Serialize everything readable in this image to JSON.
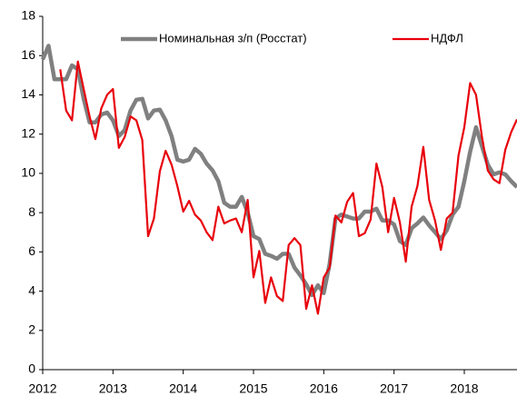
{
  "chart_data": {
    "type": "line",
    "x": [
      2012.0,
      2012.083,
      2012.167,
      2012.25,
      2012.333,
      2012.417,
      2012.5,
      2012.583,
      2012.667,
      2012.75,
      2012.833,
      2012.917,
      2013.0,
      2013.083,
      2013.167,
      2013.25,
      2013.333,
      2013.417,
      2013.5,
      2013.583,
      2013.667,
      2013.75,
      2013.833,
      2013.917,
      2014.0,
      2014.083,
      2014.167,
      2014.25,
      2014.333,
      2014.417,
      2014.5,
      2014.583,
      2014.667,
      2014.75,
      2014.833,
      2014.917,
      2015.0,
      2015.083,
      2015.167,
      2015.25,
      2015.333,
      2015.417,
      2015.5,
      2015.583,
      2015.667,
      2015.75,
      2015.833,
      2015.917,
      2016.0,
      2016.083,
      2016.167,
      2016.25,
      2016.333,
      2016.417,
      2016.5,
      2016.583,
      2016.667,
      2016.75,
      2016.833,
      2016.917,
      2017.0,
      2017.083,
      2017.167,
      2017.25,
      2017.333,
      2017.417,
      2017.5,
      2017.583,
      2017.667,
      2017.75,
      2017.833,
      2017.917,
      2018.0,
      2018.083,
      2018.167,
      2018.25,
      2018.333,
      2018.417,
      2018.5,
      2018.583,
      2018.667,
      2018.75
    ],
    "series": [
      {
        "name": "Номинальная з/п (Росстат)",
        "color": "#808080",
        "width": 4.5,
        "values": [
          15.8,
          16.5,
          14.8,
          14.8,
          14.8,
          15.5,
          15.3,
          13.8,
          12.6,
          12.6,
          13.0,
          13.1,
          12.7,
          11.9,
          12.2,
          13.2,
          13.75,
          13.8,
          12.8,
          13.2,
          13.25,
          12.7,
          11.9,
          10.7,
          10.6,
          10.7,
          11.25,
          11.0,
          10.5,
          10.15,
          9.6,
          8.5,
          8.3,
          8.3,
          8.8,
          8.0,
          6.8,
          6.65,
          5.9,
          5.8,
          5.65,
          5.9,
          5.9,
          5.2,
          4.8,
          4.35,
          3.8,
          4.3,
          3.9,
          5.4,
          7.7,
          7.9,
          7.8,
          7.7,
          7.7,
          8.05,
          8.05,
          8.2,
          7.6,
          7.6,
          7.4,
          6.55,
          6.35,
          7.2,
          7.45,
          7.75,
          7.35,
          7.0,
          6.65,
          7.1,
          7.9,
          8.3,
          9.6,
          11.1,
          12.35,
          11.4,
          10.45,
          9.95,
          10.05,
          9.95,
          9.6,
          9.3
        ]
      },
      {
        "name": "НДФЛ",
        "color": "#e8000b",
        "width": 2.2,
        "values": [
          null,
          null,
          null,
          15.3,
          13.2,
          12.7,
          15.7,
          14.3,
          12.9,
          11.75,
          13.3,
          14.0,
          14.3,
          11.3,
          11.85,
          12.9,
          12.7,
          11.7,
          6.8,
          7.7,
          10.1,
          11.15,
          10.45,
          9.35,
          8.05,
          8.6,
          7.9,
          7.6,
          7.0,
          6.6,
          8.3,
          7.45,
          7.6,
          7.7,
          7.0,
          8.65,
          4.7,
          6.05,
          3.4,
          4.7,
          3.75,
          3.5,
          6.35,
          6.7,
          6.35,
          3.1,
          4.3,
          2.85,
          4.7,
          5.2,
          7.85,
          7.5,
          8.55,
          9.0,
          6.8,
          6.95,
          7.65,
          10.5,
          9.3,
          7.0,
          8.75,
          7.5,
          5.5,
          8.3,
          9.35,
          11.35,
          8.65,
          7.6,
          6.1,
          7.7,
          8.0,
          10.9,
          12.35,
          14.6,
          14.0,
          11.9,
          10.15,
          9.7,
          9.5,
          11.2,
          12.1,
          12.75
        ]
      }
    ],
    "xlim": [
      2012,
      2018.75
    ],
    "xticks": [
      2012,
      2013,
      2014,
      2015,
      2016,
      2017,
      2018
    ],
    "ylim": [
      0,
      18
    ],
    "yticks": [
      0,
      2,
      4,
      6,
      8,
      10,
      12,
      14,
      16,
      18
    ],
    "grid": false,
    "legend": "top"
  }
}
